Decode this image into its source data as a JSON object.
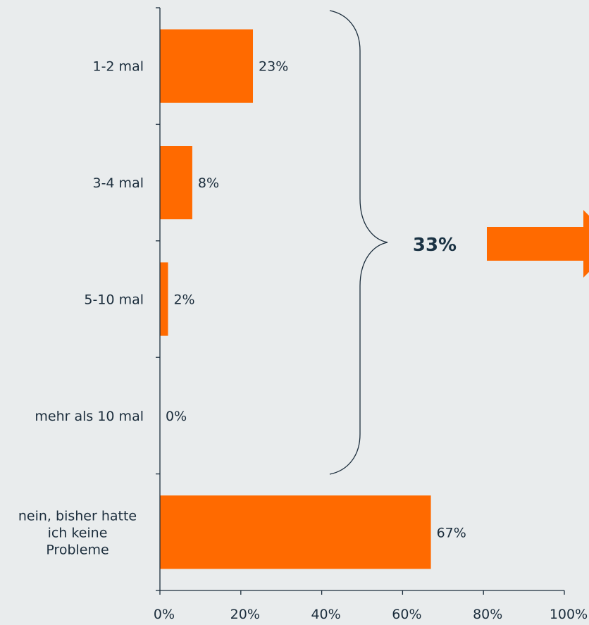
{
  "chart_data": {
    "type": "bar",
    "orientation": "horizontal",
    "categories": [
      [
        "1-2 mal"
      ],
      [
        "3-4 mal"
      ],
      [
        "5-10 mal"
      ],
      [
        "mehr als 10 mal"
      ],
      [
        "nein, bisher hatte",
        "ich keine",
        "Probleme"
      ]
    ],
    "values": [
      23,
      8,
      2,
      0,
      67
    ],
    "value_labels": [
      "23%",
      "8%",
      "2%",
      "0%",
      "67%"
    ],
    "xlim": [
      0,
      100
    ],
    "x_ticks": [
      0,
      20,
      40,
      60,
      80,
      100
    ],
    "x_tick_labels": [
      "0%",
      "20%",
      "40%",
      "60%",
      "80%",
      "100%"
    ],
    "grid": false,
    "bar_color": "#ff6a00",
    "axis_color": "#1b2d3c",
    "brace_label": "33%",
    "brace_covers": [
      "1-2 mal",
      "3-4 mal",
      "5-10 mal",
      "mehr als 10 mal"
    ],
    "arrow_color": "#ff6a00"
  }
}
